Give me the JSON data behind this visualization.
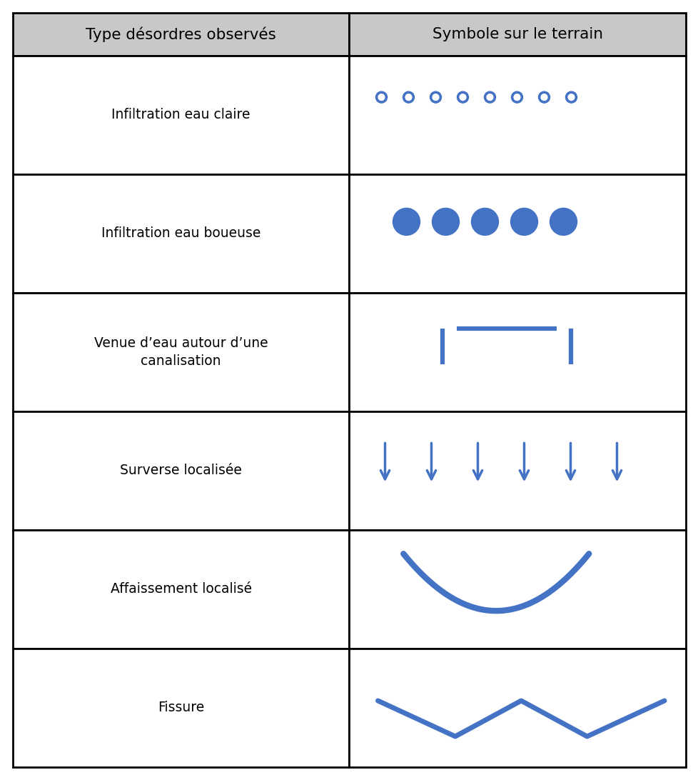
{
  "col1_header": "Type désordres observés",
  "col2_header": "Symbole sur le terrain",
  "rows": [
    "Infiltration eau claire",
    "Infiltration eau boueuse",
    "Venue d’eau autour d’une\ncanalisation",
    "Surverse localisée",
    "Affaissement localisé",
    "Fissure"
  ],
  "blue_color": "#4472C4",
  "header_bg": "#C8C8C8",
  "border_color": "#000000",
  "text_color": "#000000",
  "fig_width": 9.79,
  "fig_height": 10.92,
  "dpi": 100
}
